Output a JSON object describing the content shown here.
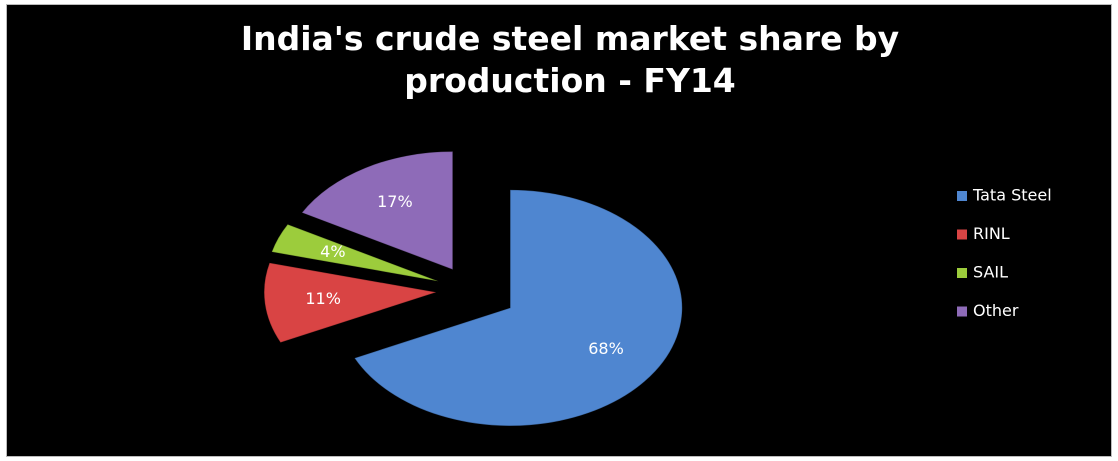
{
  "chart_data": {
    "type": "pie",
    "title": "India's crude steel market share by production - FY14",
    "categories": [
      "Tata Steel",
      "RINL",
      "SAIL",
      "Other"
    ],
    "values": [
      68,
      11,
      4,
      17
    ],
    "value_labels": [
      "68%",
      "11%",
      "4%",
      "17%"
    ],
    "colors": [
      "#4f86d0",
      "#d94444",
      "#9ccc3c",
      "#8e6bb8"
    ],
    "legend": "right"
  }
}
